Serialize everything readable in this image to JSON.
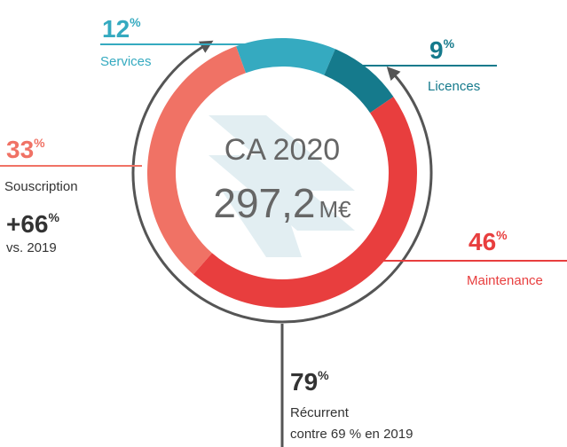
{
  "chart_data": {
    "type": "pie",
    "donut": true,
    "categories": [
      "Services",
      "Licences",
      "Maintenance",
      "Souscription"
    ],
    "values": [
      12,
      9,
      46,
      33
    ],
    "colors": [
      "#35aac0",
      "#157a8c",
      "#e83e3e",
      "#f07265"
    ],
    "unit": "%",
    "center_title": "CA 2020",
    "total": {
      "value": 297.2,
      "label": "297,2"
    },
    "total_unit": "M€",
    "annotations": [
      {
        "value": 66,
        "label": "+66",
        "text": "vs. 2019"
      },
      {
        "value": 79,
        "text": "Récurrent",
        "note": "contre 69 % en 2019"
      }
    ]
  }
}
